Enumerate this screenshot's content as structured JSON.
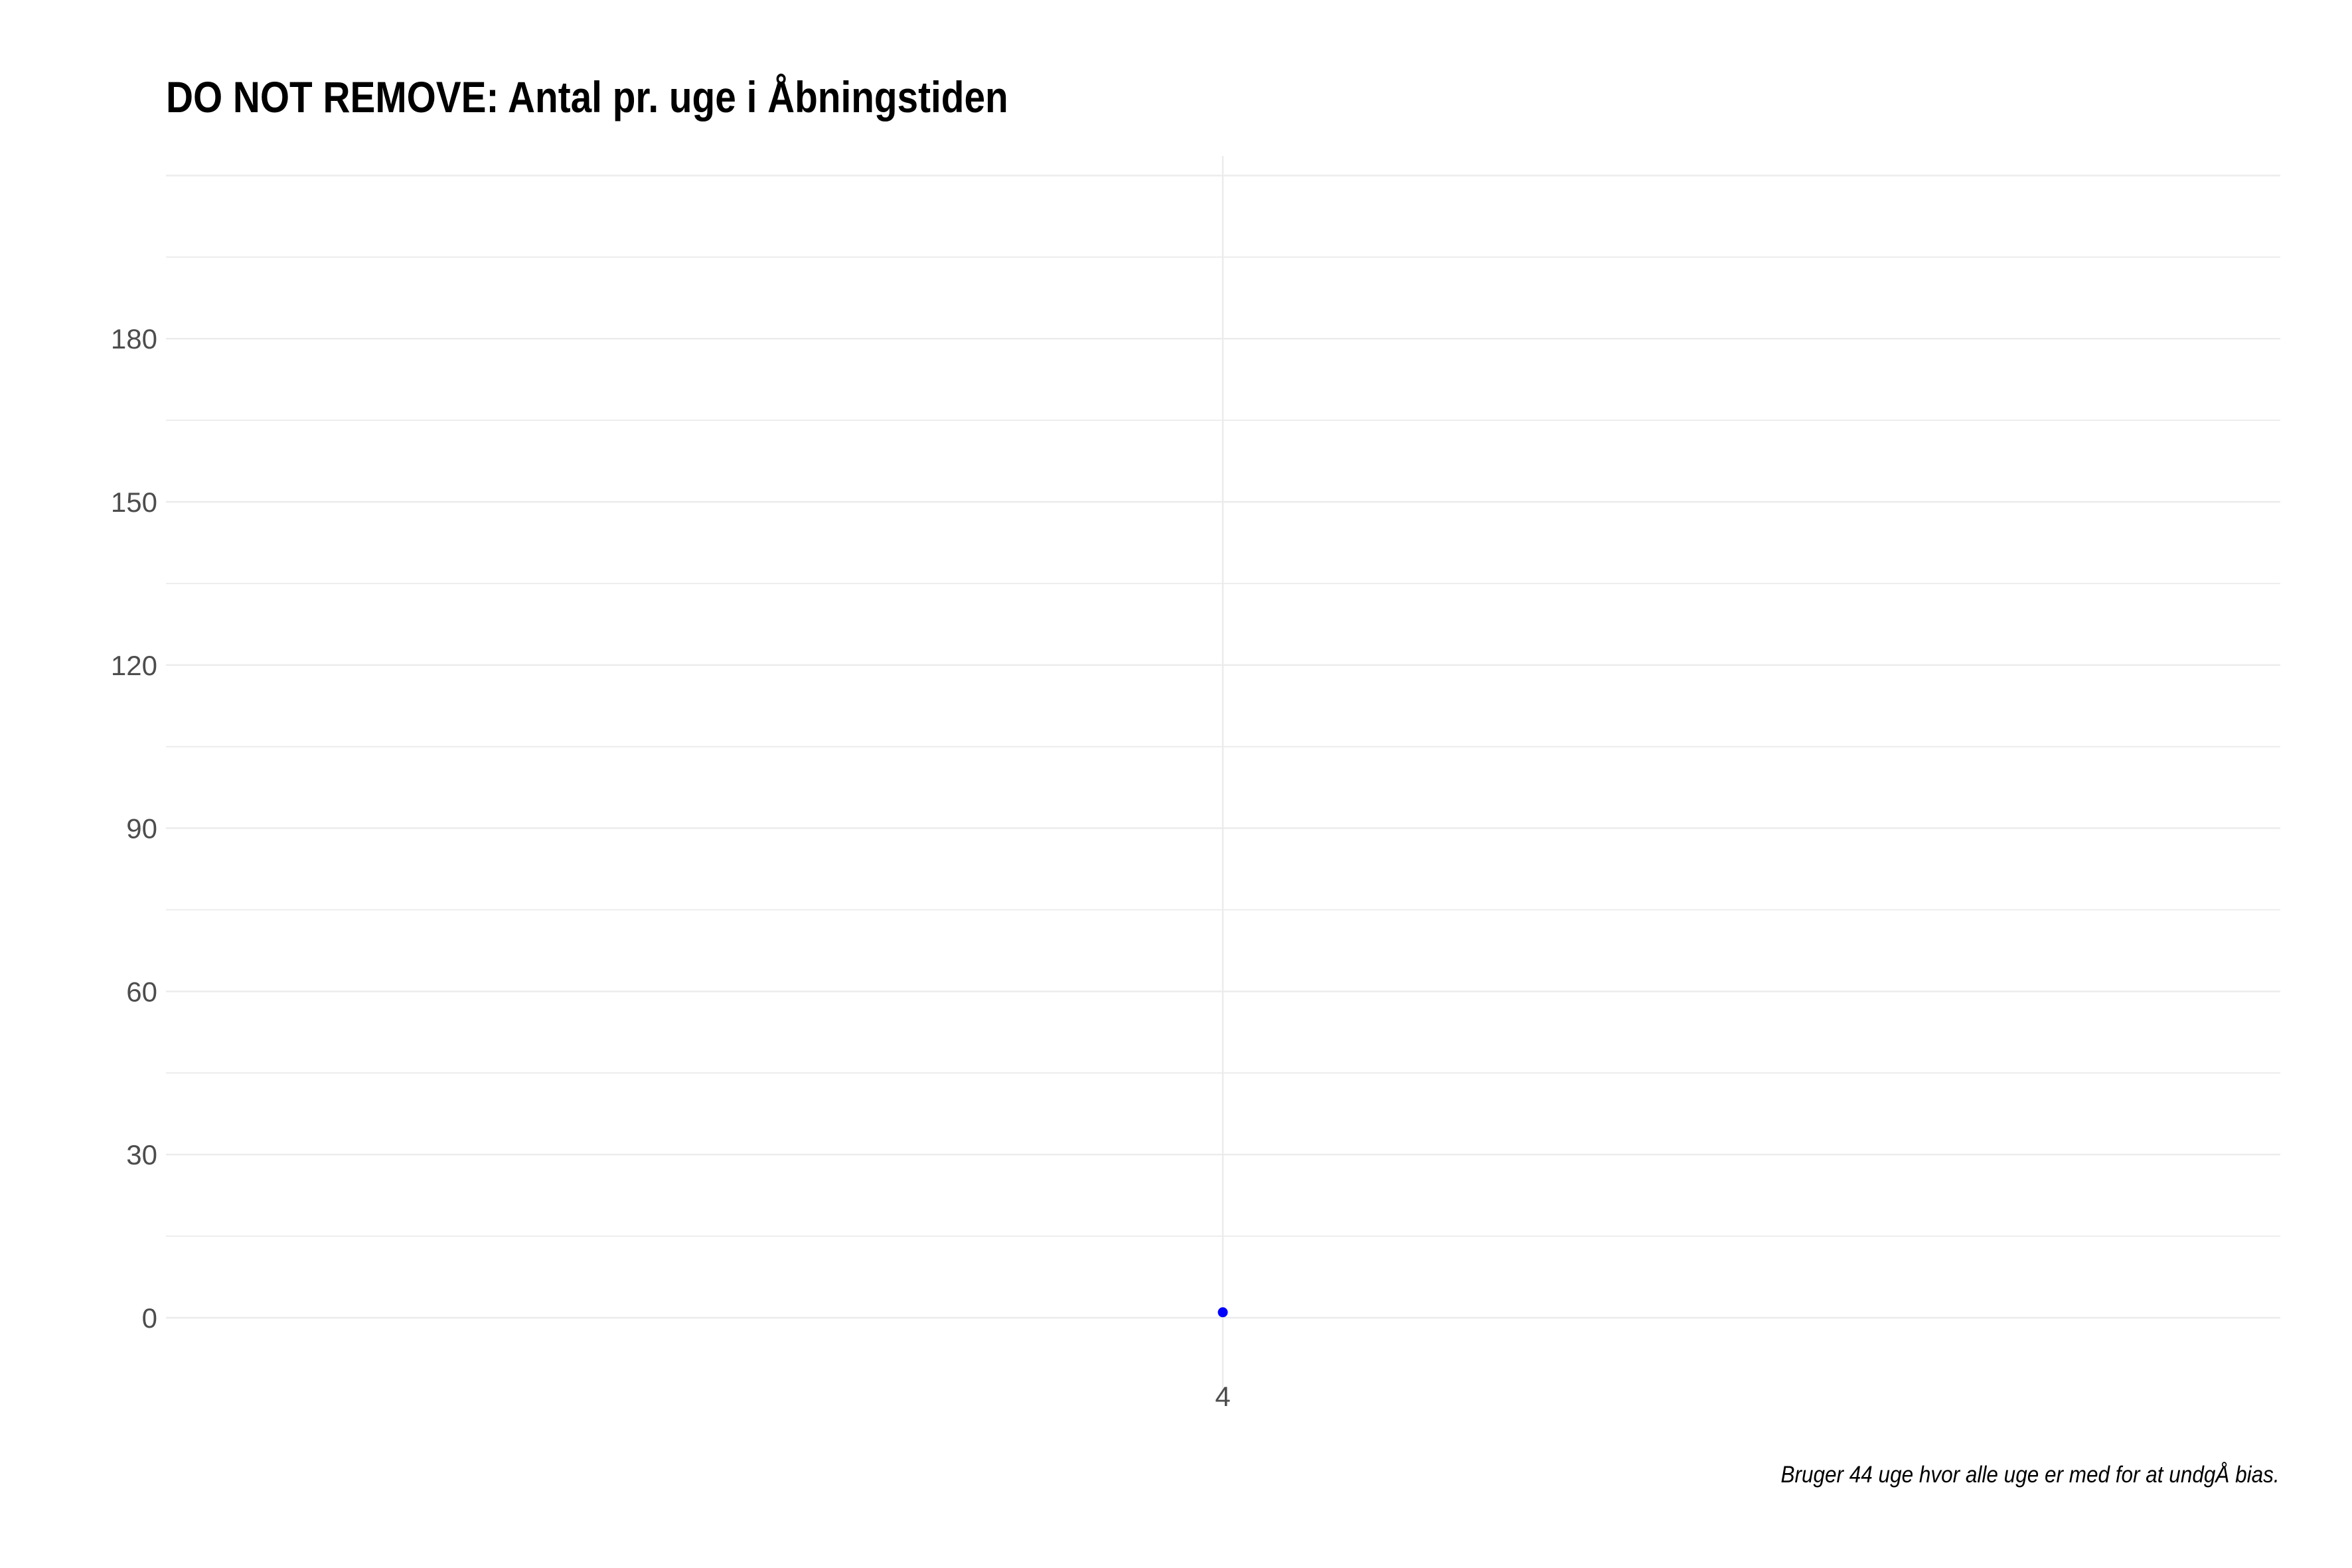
{
  "chart_data": {
    "type": "scatter",
    "title": "DO NOT REMOVE: Antal pr. uge i Åbningstiden",
    "caption": "Bruger 44 uge hvor alle uge er med for at undgÅ bias.",
    "xlabel": "",
    "ylabel": "",
    "x_categories": [
      "4"
    ],
    "y_ticks": [
      0,
      30,
      60,
      90,
      120,
      150,
      180
    ],
    "y_tick_labels": [
      "0",
      "30",
      "60",
      "90",
      "120",
      "150",
      "180"
    ],
    "ylim": [
      0,
      210
    ],
    "grid": true,
    "points": [
      {
        "x": "4",
        "y": 1
      }
    ],
    "point_color": "#0000ff",
    "grid_color": "#ebebeb"
  }
}
